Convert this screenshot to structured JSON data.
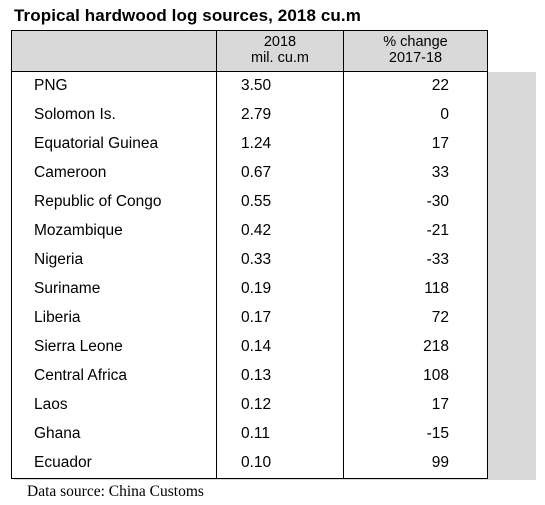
{
  "title": "Tropical hardwood log sources, 2018 cu.m",
  "header": {
    "col_volume_line1": "2018",
    "col_volume_line2": "mil. cu.m",
    "col_change_line1": "% change",
    "col_change_line2": "2017-18"
  },
  "rows": [
    {
      "country": "PNG",
      "volume": "3.50",
      "change": "22"
    },
    {
      "country": "Solomon Is.",
      "volume": "2.79",
      "change": "0"
    },
    {
      "country": "Equatorial Guinea",
      "volume": "1.24",
      "change": "17"
    },
    {
      "country": "Cameroon",
      "volume": "0.67",
      "change": "33"
    },
    {
      "country": "Republic of Congo",
      "volume": "0.55",
      "change": "-30"
    },
    {
      "country": "Mozambique",
      "volume": "0.42",
      "change": "-21"
    },
    {
      "country": "Nigeria",
      "volume": "0.33",
      "change": "-33"
    },
    {
      "country": "Suriname",
      "volume": "0.19",
      "change": "118"
    },
    {
      "country": "Liberia",
      "volume": "0.17",
      "change": "72"
    },
    {
      "country": "Sierra Leone",
      "volume": "0.14",
      "change": "218"
    },
    {
      "country": "Central Africa",
      "volume": "0.13",
      "change": "108"
    },
    {
      "country": "Laos",
      "volume": "0.12",
      "change": "17"
    },
    {
      "country": "Ghana",
      "volume": "0.11",
      "change": "-15"
    },
    {
      "country": "Ecuador",
      "volume": "0.10",
      "change": "99"
    }
  ],
  "source": "Data source: China Customs",
  "colors": {
    "header_fill": "#d9d9d9",
    "shadow_fill": "#d9d9d9",
    "border": "#000000"
  }
}
